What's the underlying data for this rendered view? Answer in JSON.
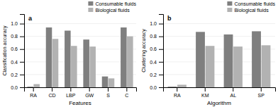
{
  "chart_data": [
    {
      "type": "bar",
      "title": "a",
      "xlabel": "Features",
      "ylabel": "Classification accuracy",
      "categories": [
        "RA",
        "CD",
        "LBP",
        "GW",
        "S",
        "C"
      ],
      "series": [
        {
          "name": "Consumable fluids",
          "color": "#7f7f7f",
          "values": [
            0.01,
            0.94,
            0.89,
            0.75,
            0.17,
            0.94
          ]
        },
        {
          "name": "Biological fluids",
          "color": "#b2b2b2",
          "values": [
            0.05,
            0.76,
            0.65,
            0.64,
            0.14,
            0.8
          ]
        }
      ],
      "ylim": [
        0,
        1.15
      ],
      "yticks": [
        {
          "value": 0.0,
          "label": "0.0"
        },
        0.2,
        0.4,
        0.6,
        0.8,
        {
          "value": 1.0,
          "label": "1.0"
        }
      ],
      "grid": true,
      "legend": "upper-right"
    },
    {
      "type": "bar",
      "title": "b",
      "xlabel": "Algorithm",
      "ylabel": "Clustering accuracy",
      "categories": [
        "RA",
        "KM",
        "AL",
        "SP"
      ],
      "series": [
        {
          "name": "Consumable fluids",
          "color": "#7f7f7f",
          "values": [
            0.01,
            0.87,
            0.83,
            0.88
          ]
        },
        {
          "name": "Biological fluids",
          "color": "#b2b2b2",
          "values": [
            0.04,
            0.65,
            0.64,
            0.66
          ]
        }
      ],
      "ylim": [
        0,
        1.15
      ],
      "yticks": [
        {
          "value": 0.0,
          "label": "0.0"
        },
        0.2,
        0.4,
        0.6,
        0.8,
        {
          "value": 1.0,
          "label": "1.0"
        }
      ],
      "grid": true,
      "legend": "upper-right"
    }
  ]
}
